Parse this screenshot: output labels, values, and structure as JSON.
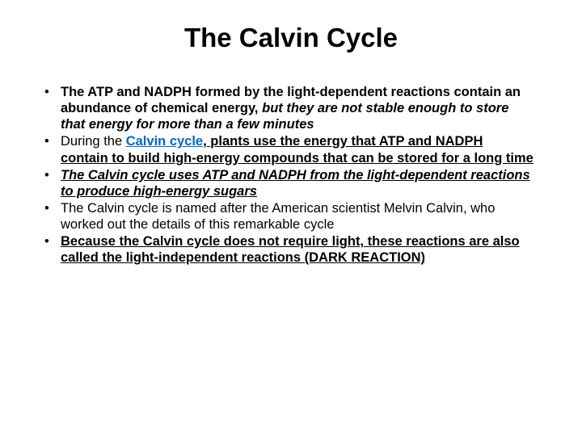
{
  "title": "The Calvin Cycle",
  "bullets": [
    {
      "parts": [
        {
          "text": "The ATP and NADPH formed by the light-dependent reactions contain an abundance of chemical energy, ",
          "cls": "bold"
        },
        {
          "text": "but they are not stable enough to store that energy for more than a few minutes",
          "cls": "bold italic"
        }
      ]
    },
    {
      "parts": [
        {
          "text": "During the ",
          "cls": "normal"
        },
        {
          "text": "Calvin cycle",
          "cls": "link bold"
        },
        {
          "text": ", plants use the energy that ATP and NADPH contain to build high-energy compounds that can be stored for a long time",
          "cls": "bold underline"
        }
      ]
    },
    {
      "parts": [
        {
          "text": "The Calvin cycle uses ATP and NADPH from the light-dependent reactions to produce high-energy sugars",
          "cls": "bold italic underline"
        }
      ]
    },
    {
      "parts": [
        {
          "text": "The Calvin cycle is named after the American scientist Melvin Calvin, who worked out the details of this remarkable cycle",
          "cls": "normal"
        }
      ]
    },
    {
      "parts": [
        {
          "text": "Because the Calvin cycle does not require light, these reactions are also called the light-independent reactions (DARK REACTION)",
          "cls": "bold underline"
        }
      ]
    }
  ]
}
